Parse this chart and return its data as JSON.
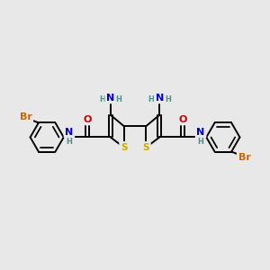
{
  "bg_color": "#e8e8e8",
  "bond_color": "#000000",
  "S_color": "#ccaa00",
  "N_color": "#0000cc",
  "O_color": "#cc0000",
  "Br_color": "#cc6600",
  "H_color": "#4a9090",
  "figsize": [
    3.0,
    3.0
  ],
  "dpi": 100,
  "xlim": [
    0,
    12
  ],
  "ylim": [
    0,
    10
  ]
}
